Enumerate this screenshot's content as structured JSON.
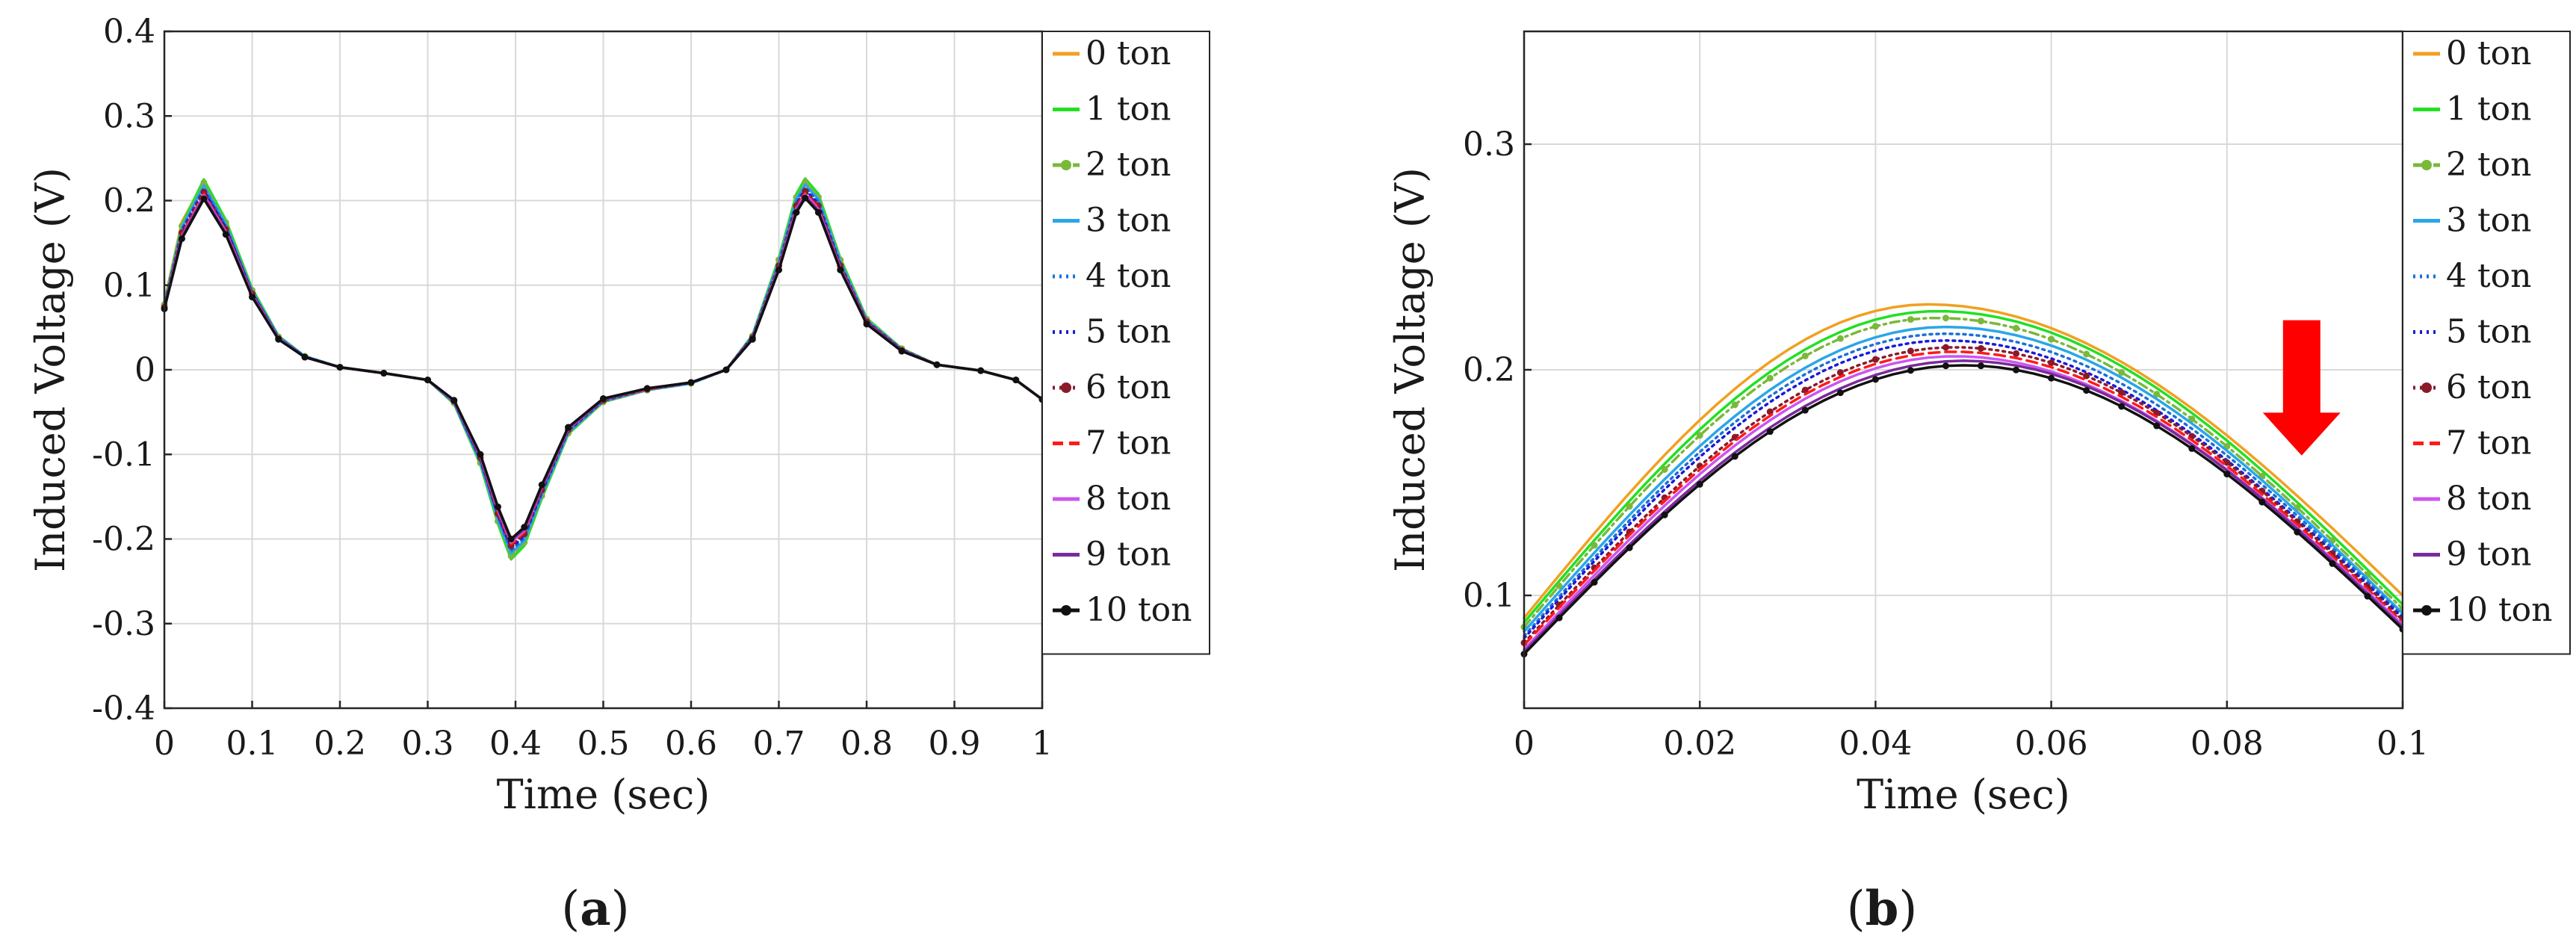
{
  "chart_data": [
    {
      "type": "line",
      "panel_label": "a",
      "xlabel": "Time (sec)",
      "ylabel": "Induced Voltage (V)",
      "xlim": [
        0,
        1
      ],
      "ylim": [
        -0.4,
        0.4
      ],
      "xticks": [
        0,
        0.1,
        0.2,
        0.3,
        0.4,
        0.5,
        0.6,
        0.7,
        0.8,
        0.9,
        1
      ],
      "xtick_labels": [
        "0",
        "0.1",
        "0.2",
        "0.3",
        "0.4",
        "0.5",
        "0.6",
        "0.7",
        "0.8",
        "0.9",
        "1"
      ],
      "yticks": [
        -0.4,
        -0.3,
        -0.2,
        -0.1,
        0,
        0.1,
        0.2,
        0.3,
        0.4
      ],
      "ytick_labels": [
        "-0.4",
        "-0.3",
        "-0.2",
        "-0.1",
        "0",
        "0.1",
        "0.2",
        "0.3",
        "0.4"
      ],
      "grid": true,
      "legend_location": "outside-right",
      "x": [
        0,
        0.02,
        0.045,
        0.07,
        0.1,
        0.13,
        0.16,
        0.2,
        0.25,
        0.3,
        0.33,
        0.36,
        0.38,
        0.395,
        0.41,
        0.43,
        0.46,
        0.5,
        0.55,
        0.6,
        0.64,
        0.67,
        0.7,
        0.72,
        0.73,
        0.745,
        0.77,
        0.8,
        0.84,
        0.88,
        0.93,
        0.97,
        1.0
      ],
      "series": [
        {
          "name": "0 ton",
          "values": [
            0.08,
            0.175,
            0.222,
            0.175,
            0.095,
            0.04,
            0.016,
            0.003,
            -0.004,
            -0.012,
            -0.04,
            -0.11,
            -0.18,
            -0.22,
            -0.205,
            -0.15,
            -0.075,
            -0.038,
            -0.024,
            -0.016,
            0.0,
            0.04,
            0.13,
            0.205,
            0.223,
            0.205,
            0.13,
            0.06,
            0.025,
            0.006,
            -0.001,
            -0.012,
            -0.035
          ]
        },
        {
          "name": "1 ton",
          "values": [
            0.078,
            0.172,
            0.225,
            0.177,
            0.096,
            0.04,
            0.016,
            0.003,
            -0.004,
            -0.012,
            -0.04,
            -0.112,
            -0.182,
            -0.224,
            -0.208,
            -0.152,
            -0.076,
            -0.038,
            -0.024,
            -0.016,
            0.0,
            0.041,
            0.132,
            0.208,
            0.226,
            0.208,
            0.132,
            0.061,
            0.025,
            0.006,
            -0.001,
            -0.012,
            -0.035
          ]
        },
        {
          "name": "2 ton",
          "values": [
            0.077,
            0.17,
            0.221,
            0.174,
            0.094,
            0.039,
            0.016,
            0.003,
            -0.004,
            -0.012,
            -0.039,
            -0.11,
            -0.179,
            -0.22,
            -0.204,
            -0.149,
            -0.075,
            -0.038,
            -0.024,
            -0.016,
            0.0,
            0.04,
            0.13,
            0.204,
            0.222,
            0.204,
            0.13,
            0.06,
            0.025,
            0.006,
            -0.001,
            -0.012,
            -0.035
          ]
        },
        {
          "name": "3 ton",
          "values": [
            0.076,
            0.168,
            0.218,
            0.172,
            0.093,
            0.039,
            0.016,
            0.003,
            -0.004,
            -0.012,
            -0.039,
            -0.109,
            -0.177,
            -0.217,
            -0.202,
            -0.148,
            -0.074,
            -0.037,
            -0.024,
            -0.016,
            0.0,
            0.04,
            0.128,
            0.202,
            0.219,
            0.202,
            0.128,
            0.059,
            0.024,
            0.006,
            -0.001,
            -0.012,
            -0.035
          ]
        },
        {
          "name": "4 ton",
          "values": [
            0.076,
            0.166,
            0.215,
            0.17,
            0.092,
            0.038,
            0.016,
            0.003,
            -0.004,
            -0.012,
            -0.038,
            -0.107,
            -0.174,
            -0.214,
            -0.199,
            -0.146,
            -0.073,
            -0.037,
            -0.023,
            -0.016,
            0.0,
            0.039,
            0.126,
            0.199,
            0.216,
            0.199,
            0.126,
            0.058,
            0.024,
            0.006,
            -0.001,
            -0.012,
            -0.035
          ]
        },
        {
          "name": "5 ton",
          "values": [
            0.075,
            0.164,
            0.212,
            0.168,
            0.091,
            0.038,
            0.015,
            0.003,
            -0.004,
            -0.012,
            -0.038,
            -0.106,
            -0.172,
            -0.211,
            -0.196,
            -0.144,
            -0.072,
            -0.036,
            -0.023,
            -0.015,
            0.0,
            0.039,
            0.124,
            0.196,
            0.213,
            0.196,
            0.124,
            0.057,
            0.024,
            0.006,
            -0.001,
            -0.012,
            -0.035
          ]
        },
        {
          "name": "6 ton",
          "values": [
            0.074,
            0.162,
            0.21,
            0.166,
            0.09,
            0.037,
            0.015,
            0.003,
            -0.004,
            -0.012,
            -0.037,
            -0.104,
            -0.17,
            -0.208,
            -0.194,
            -0.142,
            -0.071,
            -0.036,
            -0.023,
            -0.015,
            0.0,
            0.038,
            0.123,
            0.194,
            0.211,
            0.194,
            0.123,
            0.057,
            0.023,
            0.006,
            -0.001,
            -0.012,
            -0.035
          ]
        },
        {
          "name": "7 ton",
          "values": [
            0.074,
            0.16,
            0.208,
            0.164,
            0.089,
            0.037,
            0.015,
            0.003,
            -0.004,
            -0.012,
            -0.037,
            -0.103,
            -0.168,
            -0.206,
            -0.192,
            -0.14,
            -0.07,
            -0.035,
            -0.023,
            -0.015,
            0.0,
            0.038,
            0.121,
            0.192,
            0.209,
            0.192,
            0.121,
            0.056,
            0.023,
            0.006,
            -0.001,
            -0.012,
            -0.035
          ]
        },
        {
          "name": "8 ton",
          "values": [
            0.073,
            0.158,
            0.206,
            0.163,
            0.088,
            0.037,
            0.015,
            0.003,
            -0.004,
            -0.012,
            -0.037,
            -0.102,
            -0.166,
            -0.204,
            -0.19,
            -0.139,
            -0.07,
            -0.035,
            -0.022,
            -0.015,
            0.0,
            0.037,
            0.12,
            0.19,
            0.207,
            0.19,
            0.12,
            0.055,
            0.023,
            0.006,
            -0.001,
            -0.012,
            -0.035
          ]
        },
        {
          "name": "9 ton",
          "values": [
            0.073,
            0.157,
            0.204,
            0.161,
            0.087,
            0.036,
            0.015,
            0.003,
            -0.004,
            -0.012,
            -0.036,
            -0.101,
            -0.164,
            -0.202,
            -0.188,
            -0.138,
            -0.069,
            -0.035,
            -0.022,
            -0.015,
            0.0,
            0.037,
            0.119,
            0.188,
            0.205,
            0.188,
            0.119,
            0.055,
            0.023,
            0.006,
            -0.001,
            -0.012,
            -0.035
          ]
        },
        {
          "name": "10 ton",
          "values": [
            0.072,
            0.155,
            0.202,
            0.16,
            0.086,
            0.036,
            0.015,
            0.003,
            -0.004,
            -0.012,
            -0.036,
            -0.1,
            -0.162,
            -0.2,
            -0.186,
            -0.136,
            -0.068,
            -0.034,
            -0.022,
            -0.015,
            0.0,
            0.036,
            0.118,
            0.186,
            0.203,
            0.186,
            0.118,
            0.054,
            0.022,
            0.006,
            -0.001,
            -0.012,
            -0.035
          ]
        }
      ]
    },
    {
      "type": "line",
      "panel_label": "b",
      "xlabel": "Time (sec)",
      "ylabel": "Induced Voltage (V)",
      "xlim": [
        0,
        0.1
      ],
      "ylim": [
        0.05,
        0.35
      ],
      "xticks": [
        0,
        0.02,
        0.04,
        0.06,
        0.08,
        0.1
      ],
      "xtick_labels": [
        "0",
        "0.02",
        "0.04",
        "0.06",
        "0.08",
        "0.1"
      ],
      "yticks": [
        0.1,
        0.2,
        0.3
      ],
      "ytick_labels": [
        "0.1",
        "0.2",
        "0.3"
      ],
      "grid": true,
      "legend_location": "outside-right",
      "annotation": "red downward arrow indicating decreasing induced voltage with increasing load",
      "series": [
        {
          "name": "0 ton",
          "peak_x": 0.046,
          "peak": 0.229,
          "start": 0.09,
          "end": 0.1
        },
        {
          "name": "1 ton",
          "peak_x": 0.047,
          "peak": 0.226,
          "start": 0.088,
          "end": 0.096
        },
        {
          "name": "2 ton",
          "peak_x": 0.047,
          "peak": 0.223,
          "start": 0.086,
          "end": 0.094
        },
        {
          "name": "3 ton",
          "peak_x": 0.048,
          "peak": 0.219,
          "start": 0.084,
          "end": 0.092
        },
        {
          "name": "4 ton",
          "peak_x": 0.048,
          "peak": 0.216,
          "start": 0.082,
          "end": 0.091
        },
        {
          "name": "5 ton",
          "peak_x": 0.048,
          "peak": 0.213,
          "start": 0.081,
          "end": 0.09
        },
        {
          "name": "6 ton",
          "peak_x": 0.049,
          "peak": 0.21,
          "start": 0.079,
          "end": 0.089
        },
        {
          "name": "7 ton",
          "peak_x": 0.049,
          "peak": 0.208,
          "start": 0.078,
          "end": 0.088
        },
        {
          "name": "8 ton",
          "peak_x": 0.049,
          "peak": 0.206,
          "start": 0.076,
          "end": 0.087
        },
        {
          "name": "9 ton",
          "peak_x": 0.05,
          "peak": 0.204,
          "start": 0.075,
          "end": 0.086
        },
        {
          "name": "10 ton",
          "peak_x": 0.05,
          "peak": 0.202,
          "start": 0.074,
          "end": 0.085
        }
      ]
    }
  ],
  "legend_entries": [
    "0 ton",
    "1 ton",
    "2 ton",
    "3 ton",
    "4 ton",
    "5 ton",
    "6 ton",
    "7 ton",
    "8 ton",
    "9 ton",
    "10 ton"
  ],
  "series_colors": [
    "#f0a020",
    "#22e022",
    "#7ab83a",
    "#2aa6e8",
    "#1a6fd8",
    "#1a1ad8",
    "#8a1a2a",
    "#ff1a1a",
    "#cc55ee",
    "#7a2a9a",
    "#111111"
  ],
  "series_styles": [
    "solid",
    "solid",
    "dash-dot-marker",
    "solid",
    "dotted",
    "dotted",
    "dotted-marker",
    "dashed",
    "solid",
    "solid",
    "solid-marker"
  ],
  "arrow_color": "#ff0000",
  "panel_a_label": "(a)",
  "panel_b_label": "(b)"
}
